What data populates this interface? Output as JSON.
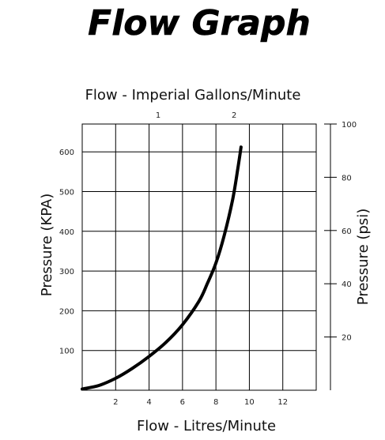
{
  "heading": "Flow Graph",
  "chart_data": {
    "type": "line",
    "title": "Flow Graph",
    "xlabel": "Flow - Litres/Minute",
    "xlabel_top": "Flow - Imperial Gallons/Minute",
    "ylabel": "Pressure (KPA)",
    "ylabel_right": "Pressure (psi)",
    "xlim": [
      0,
      14
    ],
    "ylim": [
      0,
      670
    ],
    "ylim_right": [
      0,
      100
    ],
    "x_ticks": [
      2,
      4,
      6,
      8,
      10,
      12
    ],
    "x_tick_labels": [
      "2",
      "4",
      "6",
      "8",
      "10",
      "12"
    ],
    "x_top_ticks": [
      4.546,
      9.092
    ],
    "x_top_tick_labels": [
      "1",
      "2"
    ],
    "y_ticks": [
      100,
      200,
      300,
      400,
      500,
      600
    ],
    "y_tick_labels": [
      "100",
      "200",
      "300",
      "400",
      "500",
      "600"
    ],
    "y_right_ticks": [
      20,
      40,
      60,
      80,
      100
    ],
    "y_right_tick_labels": [
      "20",
      "40",
      "60",
      "80",
      "100"
    ],
    "grid": true,
    "series": [
      {
        "x": [
          0,
          1,
          2,
          3,
          4,
          5,
          6,
          7,
          7.5,
          8,
          8.5,
          9,
          9.3,
          9.5
        ],
        "y": [
          3,
          12,
          30,
          55,
          85,
          120,
          165,
          225,
          270,
          320,
          390,
          480,
          555,
          612
        ]
      }
    ]
  }
}
